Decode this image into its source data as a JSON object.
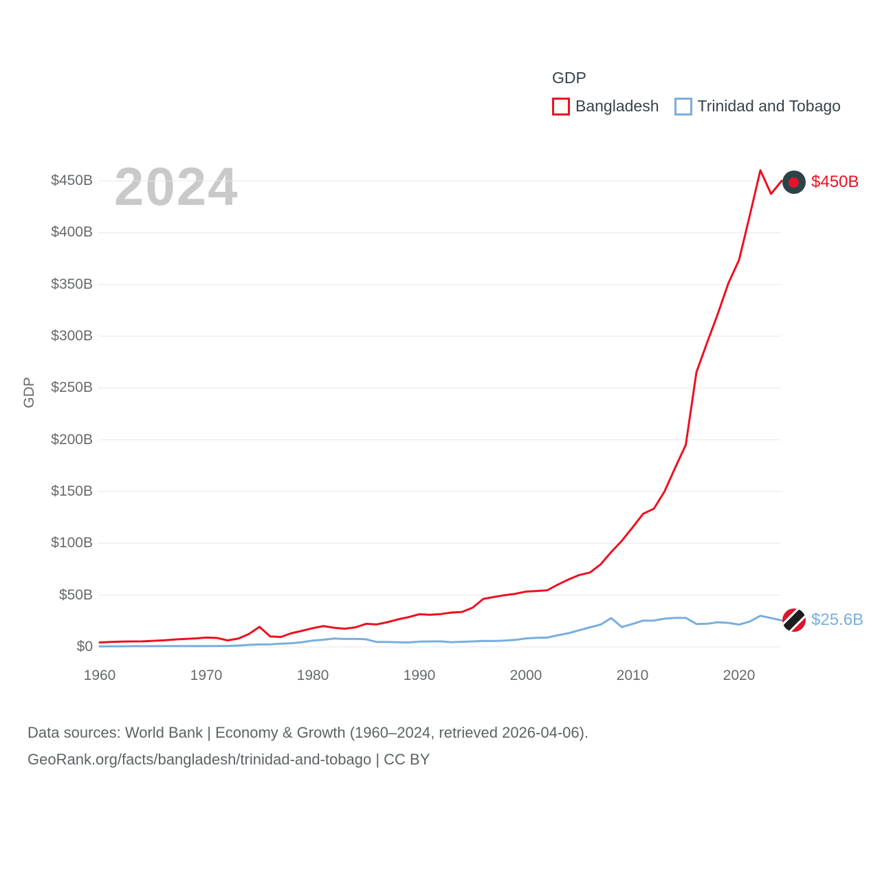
{
  "legend": {
    "title": "GDP",
    "items": [
      {
        "label": "Bangladesh",
        "color": "#ec1020"
      },
      {
        "label": "Trinidad and Tobago",
        "color": "#79aede"
      }
    ]
  },
  "watermark_year": "2024",
  "y_axis_title": "GDP",
  "end_labels": {
    "bangladesh": {
      "value": "$450B",
      "flag": "bangladesh-flag"
    },
    "trinidad_and_tobago": {
      "value": "$25.6B",
      "flag": "trinidad-and-tobago-flag"
    }
  },
  "footer": {
    "line1": "Data sources: World Bank | Economy & Growth (1960–2024, retrieved 2026-04-06).",
    "line2": "GeoRank.org/facts/bangladesh/trinidad-and-tobago | CC BY"
  },
  "chart_data": {
    "type": "line",
    "title": "GDP",
    "xlabel": "",
    "ylabel": "GDP",
    "ylim": [
      0,
      450
    ],
    "grid": true,
    "legend_position": "top-right",
    "yticks": [
      0,
      50,
      100,
      150,
      200,
      250,
      300,
      350,
      400,
      450
    ],
    "ytick_labels": [
      "$0",
      "$50B",
      "$100B",
      "$150B",
      "$200B",
      "$250B",
      "$300B",
      "$350B",
      "$400B",
      "$450B"
    ],
    "xticks": [
      1960,
      1970,
      1980,
      1990,
      2000,
      2010,
      2020
    ],
    "x": [
      1960,
      1961,
      1962,
      1963,
      1964,
      1965,
      1966,
      1967,
      1968,
      1969,
      1970,
      1971,
      1972,
      1973,
      1974,
      1975,
      1976,
      1977,
      1978,
      1979,
      1980,
      1981,
      1982,
      1983,
      1984,
      1985,
      1986,
      1987,
      1988,
      1989,
      1990,
      1991,
      1992,
      1993,
      1994,
      1995,
      1996,
      1997,
      1998,
      1999,
      2000,
      2001,
      2002,
      2003,
      2004,
      2005,
      2006,
      2007,
      2008,
      2009,
      2010,
      2011,
      2012,
      2013,
      2014,
      2015,
      2016,
      2017,
      2018,
      2019,
      2020,
      2021,
      2022,
      2023,
      2024
    ],
    "series": [
      {
        "name": "Bangladesh",
        "color": "#ec1020",
        "unit": "USD billions",
        "values": [
          4.3,
          4.8,
          5.1,
          5.3,
          5.4,
          5.9,
          6.4,
          7.2,
          7.7,
          8.2,
          9.0,
          8.7,
          6.3,
          8.0,
          12.5,
          19.4,
          10.1,
          9.6,
          13.3,
          15.6,
          18.1,
          20.2,
          18.5,
          17.6,
          18.9,
          22.3,
          21.8,
          23.9,
          26.6,
          28.8,
          31.6,
          31.0,
          31.7,
          33.2,
          33.8,
          37.9,
          46.4,
          48.2,
          50.0,
          51.3,
          53.4,
          54.0,
          54.7,
          60.2,
          65.1,
          69.4,
          71.8,
          79.6,
          91.6,
          102.5,
          115.3,
          128.6,
          133.4,
          150.0,
          172.9,
          195.1,
          265.2,
          293.8,
          321.4,
          351.2,
          373.6,
          416.3,
          460.2,
          437.4,
          450.0
        ]
      },
      {
        "name": "Trinidad and Tobago",
        "color": "#79aede",
        "unit": "USD billions",
        "values": [
          0.5,
          0.6,
          0.6,
          0.7,
          0.7,
          0.7,
          0.8,
          0.8,
          0.8,
          0.8,
          0.8,
          0.9,
          1.0,
          1.3,
          2.0,
          2.4,
          2.5,
          3.1,
          3.6,
          4.6,
          6.2,
          7.0,
          8.1,
          7.7,
          7.8,
          7.4,
          4.8,
          4.8,
          4.5,
          4.3,
          5.1,
          5.3,
          5.4,
          4.6,
          5.0,
          5.3,
          5.8,
          5.7,
          6.1,
          6.8,
          8.2,
          8.8,
          9.0,
          11.3,
          13.3,
          16.1,
          18.9,
          21.5,
          27.9,
          19.2,
          22.2,
          25.4,
          25.5,
          27.3,
          28.1,
          28.1,
          22.1,
          22.4,
          23.8,
          23.2,
          21.6,
          24.5,
          30.1,
          27.9,
          25.6
        ]
      }
    ],
    "final_value_labels": {
      "Bangladesh": "$450B",
      "Trinidad and Tobago": "$25.6B"
    }
  }
}
